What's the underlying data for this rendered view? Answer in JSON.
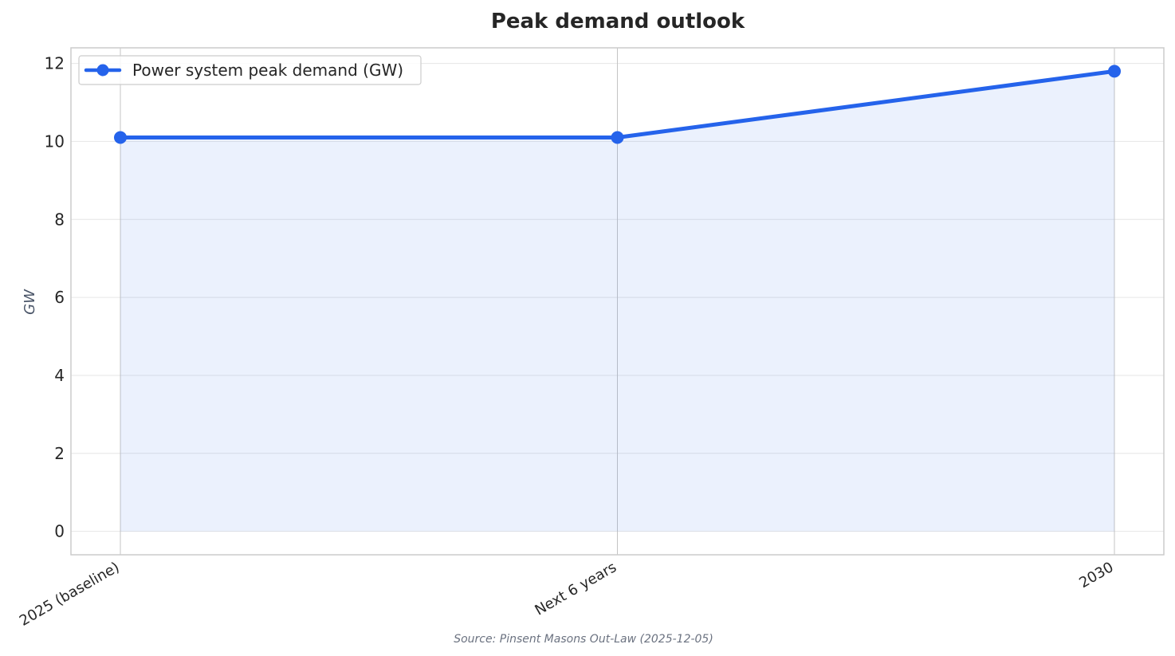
{
  "chart_data": {
    "type": "line",
    "title": "Peak demand outlook",
    "xlabel": "",
    "ylabel": "GW",
    "categories": [
      "2025 (baseline)",
      "Next 6 years",
      "2030"
    ],
    "series": [
      {
        "name": "Power system peak demand (GW)",
        "values": [
          10.1,
          10.1,
          11.8
        ]
      }
    ],
    "ylim": [
      -0.6,
      12.4
    ],
    "yticks": [
      0,
      2,
      4,
      6,
      8,
      10,
      12
    ],
    "grid": true,
    "legend_position": "top-left",
    "area_fill": true,
    "line_color": "#2563eb",
    "source": "Source: Pinsent Masons Out-Law (2025-12-05)"
  }
}
